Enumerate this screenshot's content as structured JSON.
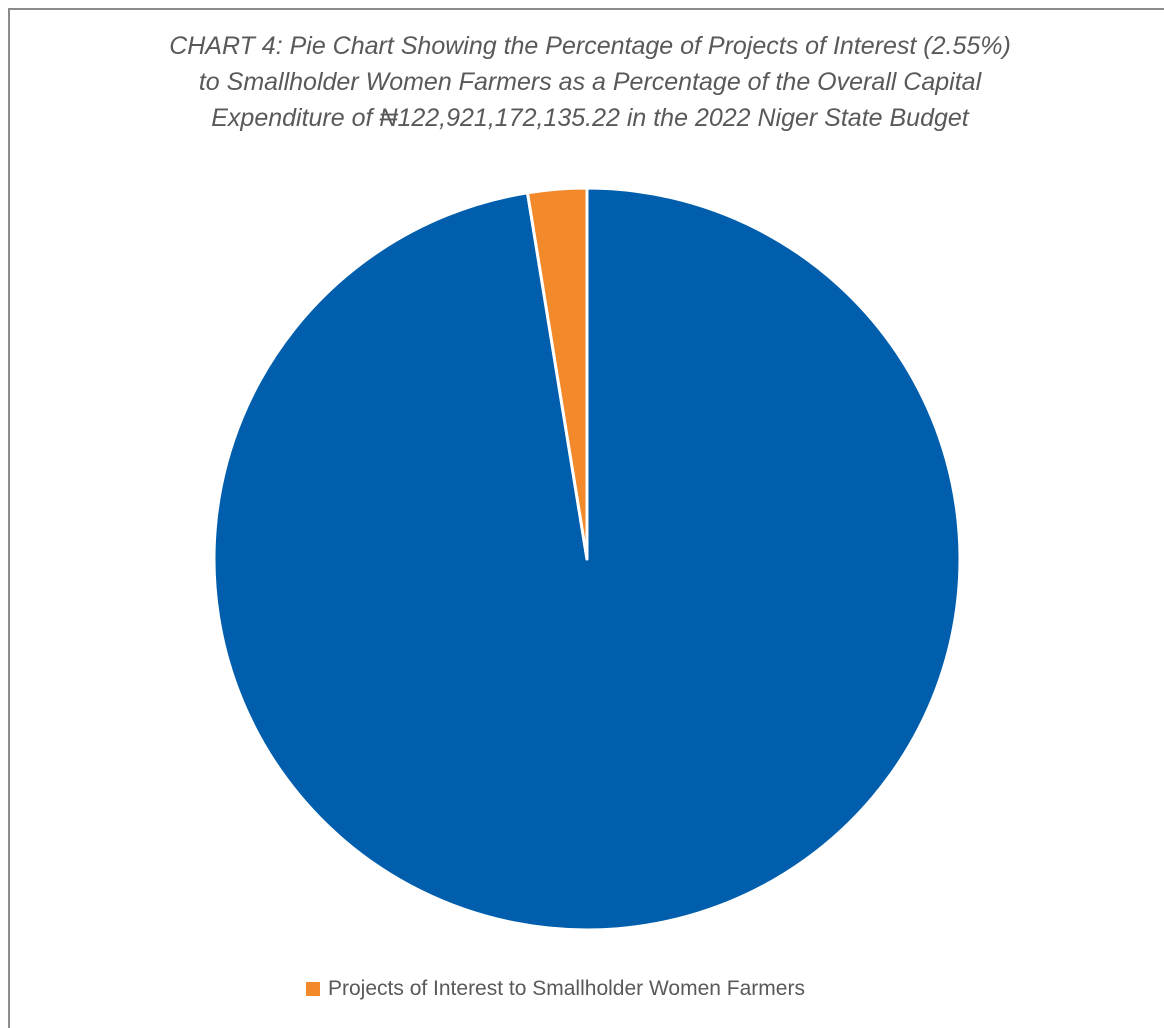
{
  "chart_data": {
    "type": "pie",
    "title_lines": [
      "CHART 4: Pie Chart Showing the Percentage of Projects of Interest (2.55%)",
      "to Smallholder Women Farmers as a Percentage of the Overall Capital",
      "Expenditure of ₦122,921,172,135.22 in the  2022 Niger State Budget"
    ],
    "slices": [
      {
        "name": "",
        "value": 97.45,
        "color": "#005eac"
      },
      {
        "name": "Projects of Interest to Smallholder Women Farmers",
        "value": 2.55,
        "color": "#f2892b"
      }
    ],
    "legend_placement": "bottom",
    "legend": [
      {
        "label": "Projects of Interest to Smallholder Women Farmers",
        "color": "#f2892b"
      }
    ],
    "start_angle_degrees": 0
  }
}
